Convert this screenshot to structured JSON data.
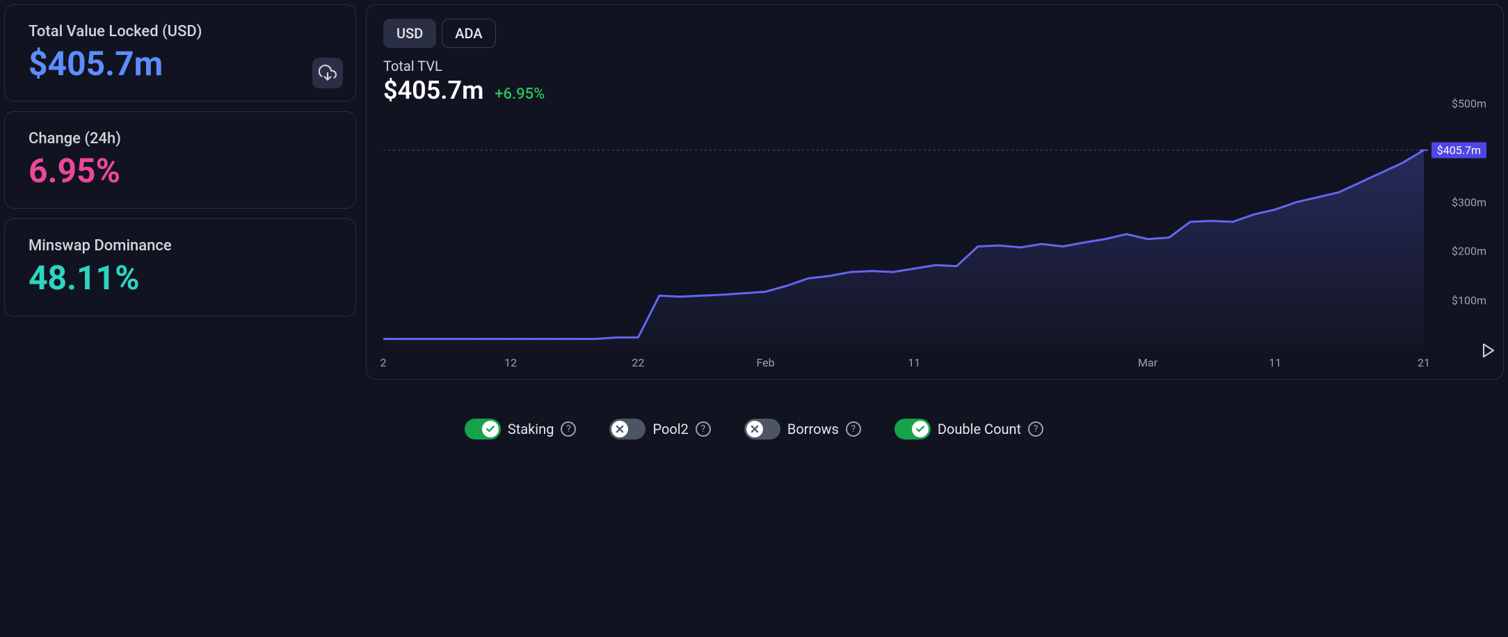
{
  "colors": {
    "bg": "#111320",
    "card_border": "#2a2f45",
    "text_primary": "#e5e7eb",
    "text_muted": "#9ca3af",
    "accent_blue": "#5c8dff",
    "accent_pink": "#ec4899",
    "accent_teal": "#2dd4bf",
    "positive": "#22c55e",
    "line": "#6366f1",
    "fill_top": "rgba(99,102,241,0.28)",
    "fill_bot": "rgba(99,102,241,0.02)",
    "toggle_on": "#16a34a",
    "toggle_off": "#4b5563",
    "badge": "#4f46e5"
  },
  "left": {
    "tvl": {
      "label": "Total Value Locked (USD)",
      "value": "$405.7m"
    },
    "change": {
      "label": "Change (24h)",
      "value": "6.95%"
    },
    "dominance": {
      "label": "Minswap Dominance",
      "value": "48.11%"
    }
  },
  "chart": {
    "tabs": [
      "USD",
      "ADA"
    ],
    "active_tab": 0,
    "title_label": "Total TVL",
    "title_value": "$405.7m",
    "title_change": "+6.95%",
    "type": "area",
    "xlim": [
      0,
      49
    ],
    "ylim": [
      0,
      520
    ],
    "y_ticks": [
      {
        "v": 100,
        "label": "$100m"
      },
      {
        "v": 200,
        "label": "$200m"
      },
      {
        "v": 300,
        "label": "$300m"
      },
      {
        "v": 500,
        "label": "$500m"
      }
    ],
    "current_marker": {
      "v": 405.7,
      "label": "$405.7m"
    },
    "x_ticks": [
      {
        "i": 0,
        "label": "2"
      },
      {
        "i": 6,
        "label": "12"
      },
      {
        "i": 12,
        "label": "22"
      },
      {
        "i": 18,
        "label": "Feb"
      },
      {
        "i": 25,
        "label": "11"
      },
      {
        "i": 36,
        "label": "Mar"
      },
      {
        "i": 42,
        "label": "11"
      },
      {
        "i": 49,
        "label": "21"
      }
    ],
    "series": [
      22,
      22,
      22,
      22,
      22,
      22,
      22,
      22,
      22,
      22,
      22,
      25,
      25,
      110,
      108,
      110,
      112,
      115,
      118,
      130,
      145,
      150,
      158,
      160,
      158,
      165,
      172,
      170,
      210,
      212,
      208,
      215,
      210,
      218,
      225,
      235,
      225,
      228,
      260,
      262,
      260,
      275,
      285,
      300,
      310,
      320,
      340,
      360,
      380,
      405.7
    ],
    "line_width": 3
  },
  "toggles": [
    {
      "label": "Staking",
      "on": true
    },
    {
      "label": "Pool2",
      "on": false
    },
    {
      "label": "Borrows",
      "on": false
    },
    {
      "label": "Double Count",
      "on": true
    }
  ]
}
